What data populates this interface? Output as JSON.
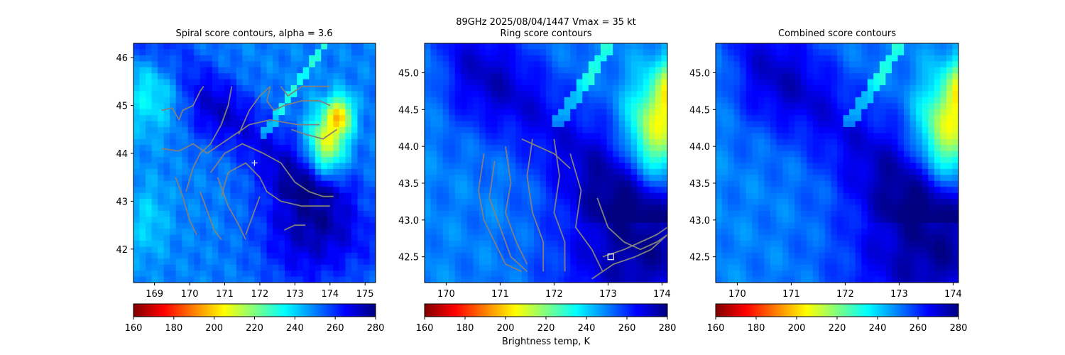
{
  "figure": {
    "suptitle": "89GHz  2025/08/04/1447    Vmax = 35 kt",
    "cbar_label": "Brightness temp, K"
  },
  "colormap": {
    "name": "jet_r",
    "stops": [
      "#800000",
      "#ff0000",
      "#ff8000",
      "#ffff00",
      "#80ff80",
      "#00ffff",
      "#0080ff",
      "#0000ff",
      "#000080"
    ]
  },
  "chart_data": [
    {
      "type": "heatmap",
      "title": "Spiral score contours, alpha =  3.6",
      "xlim": [
        168.4,
        175.3
      ],
      "ylim": [
        41.3,
        46.3
      ],
      "xticks": [
        169,
        170,
        171,
        172,
        173,
        174,
        175
      ],
      "yticks": [
        42,
        43,
        44,
        45,
        46
      ],
      "ytick_labels": [
        "42",
        "43",
        "44",
        "45",
        "46"
      ],
      "colorbar": {
        "range": [
          160,
          280
        ],
        "ticks": [
          160,
          180,
          200,
          220,
          240,
          260,
          280
        ]
      },
      "marker": {
        "symbol": "+",
        "x": 171.85,
        "y": 43.8,
        "color": "#ffffff"
      },
      "contours": [
        [
          [
            169.2,
            44.9
          ],
          [
            169.5,
            44.95
          ],
          [
            169.7,
            44.7
          ],
          [
            169.8,
            44.9
          ],
          [
            170.1,
            45.0
          ],
          [
            170.3,
            45.3
          ],
          [
            170.4,
            45.4
          ]
        ],
        [
          [
            169.2,
            44.1
          ],
          [
            169.7,
            44.05
          ],
          [
            170.1,
            44.2
          ],
          [
            170.5,
            44.0
          ],
          [
            170.9,
            44.2
          ],
          [
            171.3,
            44.4
          ],
          [
            171.7,
            44.6
          ],
          [
            172.3,
            44.7
          ],
          [
            173.1,
            44.6
          ],
          [
            173.7,
            44.6
          ]
        ],
        [
          [
            169.6,
            43.5
          ],
          [
            169.8,
            43.1
          ],
          [
            170.0,
            42.6
          ],
          [
            170.2,
            42.3
          ]
        ],
        [
          [
            169.9,
            43.2
          ],
          [
            170.1,
            43.7
          ],
          [
            170.3,
            44.0
          ],
          [
            170.6,
            44.2
          ],
          [
            170.9,
            44.6
          ],
          [
            171.1,
            45.0
          ],
          [
            171.2,
            45.4
          ]
        ],
        [
          [
            170.3,
            43.2
          ],
          [
            170.5,
            42.8
          ],
          [
            170.7,
            42.4
          ],
          [
            170.9,
            42.2
          ]
        ],
        [
          [
            170.6,
            43.6
          ],
          [
            171.0,
            44.0
          ],
          [
            171.5,
            44.2
          ],
          [
            172.1,
            44.0
          ],
          [
            172.6,
            43.8
          ],
          [
            173.0,
            43.4
          ],
          [
            173.4,
            43.2
          ],
          [
            173.8,
            43.1
          ],
          [
            174.1,
            43.1
          ]
        ],
        [
          [
            170.9,
            43.1
          ],
          [
            171.1,
            43.6
          ],
          [
            171.6,
            43.8
          ],
          [
            172.0,
            43.5
          ],
          [
            172.2,
            43.2
          ],
          [
            172.6,
            43.0
          ],
          [
            173.2,
            42.9
          ],
          [
            173.8,
            42.9
          ],
          [
            174.0,
            42.9
          ]
        ],
        [
          [
            170.8,
            43.5
          ],
          [
            171.1,
            42.9
          ],
          [
            171.4,
            42.5
          ],
          [
            171.6,
            42.2
          ]
        ],
        [
          [
            171.4,
            44.4
          ],
          [
            171.7,
            44.9
          ],
          [
            172.0,
            45.2
          ],
          [
            172.3,
            45.4
          ]
        ],
        [
          [
            172.0,
            43.1
          ],
          [
            171.8,
            42.7
          ],
          [
            171.6,
            42.3
          ]
        ],
        [
          [
            172.3,
            45.4
          ],
          [
            172.2,
            45.1
          ],
          [
            172.4,
            44.9
          ],
          [
            172.7,
            45.0
          ],
          [
            173.2,
            45.1
          ],
          [
            173.7,
            45.1
          ],
          [
            174.0,
            45.0
          ]
        ],
        [
          [
            172.6,
            45.4
          ],
          [
            172.8,
            45.2
          ],
          [
            173.2,
            45.4
          ],
          [
            173.6,
            45.4
          ],
          [
            174.0,
            45.4
          ]
        ],
        [
          [
            172.9,
            44.5
          ],
          [
            173.3,
            44.4
          ],
          [
            173.8,
            44.3
          ],
          [
            174.2,
            44.5
          ]
        ],
        [
          [
            172.7,
            42.4
          ],
          [
            173.0,
            42.5
          ],
          [
            173.3,
            42.5
          ]
        ]
      ]
    },
    {
      "type": "heatmap",
      "title": "Ring score contours",
      "xlim": [
        169.6,
        174.1
      ],
      "ylim": [
        42.15,
        45.4
      ],
      "xticks": [
        170,
        171,
        172,
        173,
        174
      ],
      "yticks": [
        42.5,
        43.0,
        43.5,
        44.0,
        44.5,
        45.0
      ],
      "ytick_labels": [
        "42.5",
        "43.0",
        "43.5",
        "44.0",
        "44.5",
        "45.0"
      ],
      "colorbar": {
        "range": [
          160,
          280
        ],
        "ticks": [
          160,
          180,
          200,
          220,
          240,
          260,
          280
        ]
      },
      "marker": {
        "symbol": "square",
        "x": 173.05,
        "y": 42.5,
        "color": "#ffffff"
      },
      "contours": [
        [
          [
            170.7,
            43.9
          ],
          [
            170.6,
            43.4
          ],
          [
            170.7,
            43.0
          ],
          [
            170.9,
            42.7
          ],
          [
            171.1,
            42.4
          ],
          [
            171.4,
            42.3
          ]
        ],
        [
          [
            170.9,
            43.8
          ],
          [
            170.8,
            43.3
          ],
          [
            171.0,
            42.9
          ],
          [
            171.2,
            42.5
          ],
          [
            171.5,
            42.3
          ]
        ],
        [
          [
            171.1,
            44.0
          ],
          [
            171.2,
            43.5
          ],
          [
            171.1,
            43.1
          ],
          [
            171.3,
            42.7
          ],
          [
            171.5,
            42.4
          ]
        ],
        [
          [
            171.6,
            44.1
          ],
          [
            171.5,
            43.6
          ],
          [
            171.6,
            43.1
          ],
          [
            171.8,
            42.7
          ],
          [
            171.8,
            42.3
          ]
        ],
        [
          [
            172.0,
            44.1
          ],
          [
            172.1,
            43.6
          ],
          [
            172.0,
            43.1
          ],
          [
            172.2,
            42.7
          ],
          [
            172.2,
            42.3
          ]
        ],
        [
          [
            172.3,
            43.9
          ],
          [
            172.5,
            43.4
          ],
          [
            172.4,
            42.9
          ],
          [
            172.7,
            42.6
          ],
          [
            172.9,
            42.3
          ]
        ],
        [
          [
            172.8,
            43.3
          ],
          [
            173.0,
            42.9
          ],
          [
            173.3,
            42.7
          ],
          [
            173.6,
            42.6
          ],
          [
            173.9,
            42.7
          ],
          [
            174.1,
            42.8
          ]
        ],
        [
          [
            172.9,
            42.5
          ],
          [
            173.3,
            42.6
          ],
          [
            173.6,
            42.7
          ],
          [
            173.9,
            42.8
          ],
          [
            174.1,
            42.9
          ]
        ],
        [
          [
            172.7,
            42.2
          ],
          [
            173.1,
            42.4
          ],
          [
            173.5,
            42.5
          ],
          [
            173.8,
            42.6
          ],
          [
            174.1,
            42.8
          ]
        ],
        [
          [
            171.4,
            44.1
          ],
          [
            171.7,
            44.0
          ],
          [
            172.0,
            43.9
          ],
          [
            172.3,
            43.7
          ]
        ]
      ]
    },
    {
      "type": "heatmap",
      "title": "Combined score contours",
      "xlim": [
        169.6,
        174.1
      ],
      "ylim": [
        42.15,
        45.4
      ],
      "xticks": [
        170,
        171,
        172,
        173,
        174
      ],
      "yticks": [
        42.5,
        43.0,
        43.5,
        44.0,
        44.5,
        45.0
      ],
      "ytick_labels": [
        "42.5",
        "43.0",
        "43.5",
        "44.0",
        "44.5",
        "45.0"
      ],
      "colorbar": {
        "range": [
          160,
          280
        ],
        "ticks": [
          160,
          180,
          200,
          220,
          240,
          260,
          280
        ]
      }
    }
  ]
}
